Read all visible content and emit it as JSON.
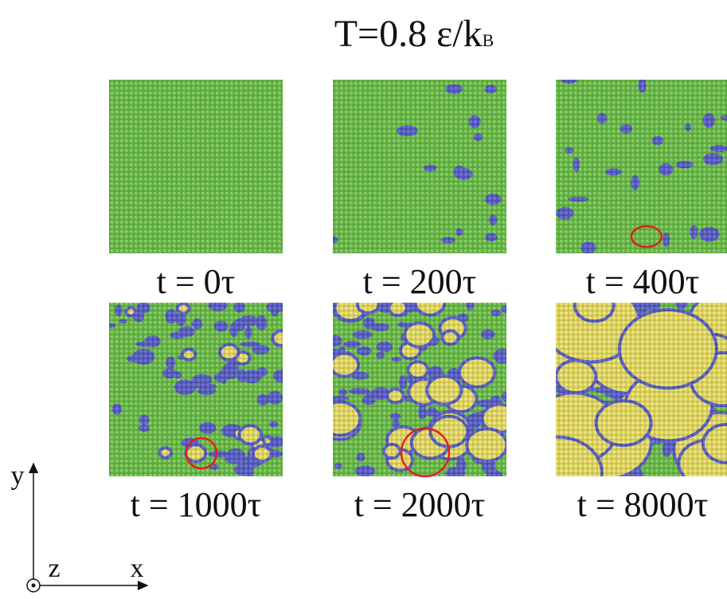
{
  "title": {
    "text": "T=0.8 ε/k",
    "subscript": "B"
  },
  "panels": [
    {
      "label": "t = 0τ"
    },
    {
      "label": "t = 200τ"
    },
    {
      "label": "t = 400τ"
    },
    {
      "label": "t = 1000τ"
    },
    {
      "label": "t = 2000τ"
    },
    {
      "label": "t = 8000τ"
    }
  ],
  "axes": {
    "y": "y",
    "z": "z",
    "x": "x"
  }
}
